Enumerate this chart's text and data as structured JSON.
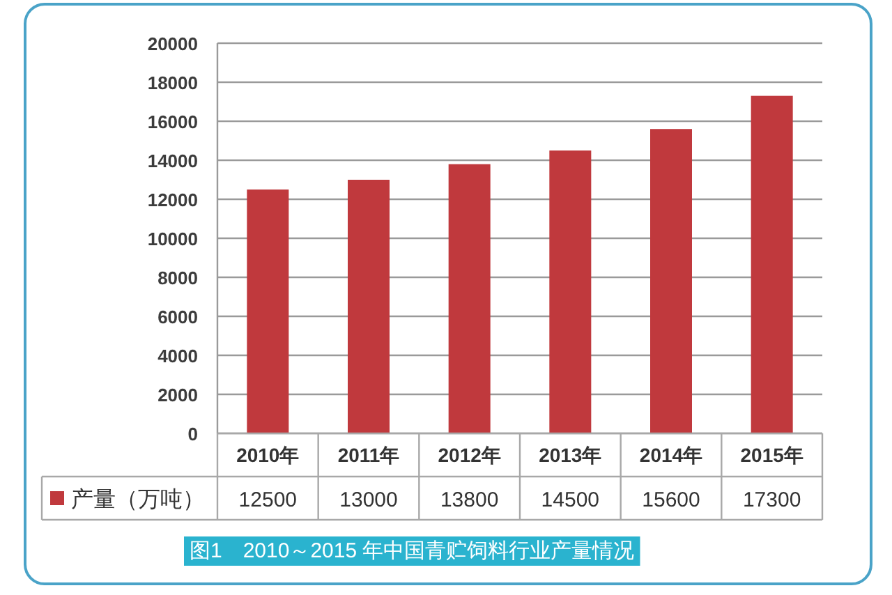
{
  "chart_data": {
    "type": "bar",
    "categories": [
      "2010年",
      "2011年",
      "2012年",
      "2013年",
      "2014年",
      "2015年"
    ],
    "series": [
      {
        "name": "产量（万吨）",
        "color": "#c0393d",
        "values": [
          12500,
          13000,
          13800,
          14500,
          15600,
          17300
        ]
      }
    ],
    "ylim": [
      0,
      20000
    ],
    "yticks": [
      0,
      2000,
      4000,
      6000,
      8000,
      10000,
      12000,
      14000,
      16000,
      18000,
      20000
    ],
    "grid": "y",
    "legend": "bottom",
    "data_labels": true,
    "annotations": [
      "图1　2010～2015 年中国青贮饲料行业产量情况"
    ]
  }
}
